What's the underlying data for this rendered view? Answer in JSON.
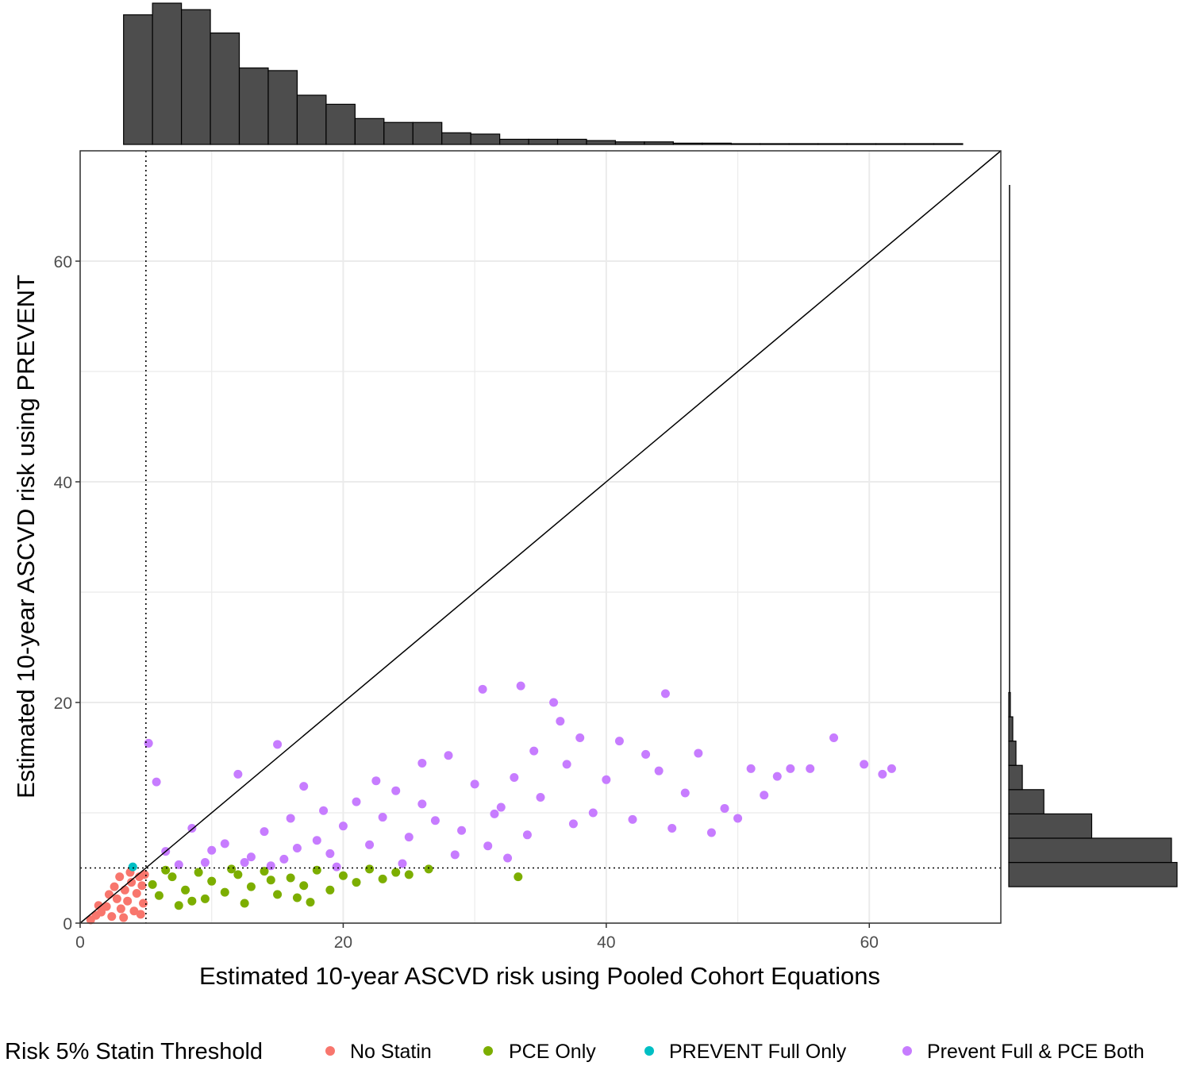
{
  "chart_data": {
    "type": "scatter",
    "title": "",
    "xlabel": "Estimated 10-year ASCVD risk using Pooled Cohort Equations",
    "ylabel": "Estimated 10-year ASCVD risk using PREVENT",
    "xlim": [
      0,
      70
    ],
    "ylim": [
      0,
      70
    ],
    "x_ticks": [
      0,
      20,
      40,
      60
    ],
    "y_ticks": [
      0,
      20,
      40,
      60
    ],
    "x_tick_labels": [
      "0",
      "20",
      "40",
      "60"
    ],
    "y_tick_labels": [
      "0",
      "20",
      "40",
      "60"
    ],
    "grid": true,
    "threshold": 5,
    "reference_line": "y = x",
    "legend": {
      "title": "Risk 5% Statin Threshold",
      "position": "bottom",
      "entries": [
        {
          "label": "No Statin",
          "color": "#F8766D"
        },
        {
          "label": "PCE Only",
          "color": "#7CAE00"
        },
        {
          "label": "PREVENT Full Only",
          "color": "#00BFC4"
        },
        {
          "label": "Prevent Full & PCE Both",
          "color": "#C77CFF"
        }
      ]
    },
    "series": [
      {
        "name": "No Statin",
        "color": "#F8766D",
        "points": [
          [
            0.8,
            0.3
          ],
          [
            1.2,
            0.7
          ],
          [
            1.6,
            1.0
          ],
          [
            2.0,
            1.5
          ],
          [
            2.4,
            0.6
          ],
          [
            2.8,
            2.2
          ],
          [
            3.1,
            1.3
          ],
          [
            3.4,
            3.0
          ],
          [
            3.6,
            2.0
          ],
          [
            3.9,
            3.7
          ],
          [
            4.1,
            1.1
          ],
          [
            4.3,
            2.7
          ],
          [
            4.5,
            4.2
          ],
          [
            4.7,
            3.4
          ],
          [
            4.8,
            1.8
          ],
          [
            2.6,
            3.3
          ],
          [
            3.0,
            4.2
          ],
          [
            3.8,
            4.6
          ],
          [
            1.4,
            1.6
          ],
          [
            2.2,
            2.6
          ],
          [
            4.9,
            4.4
          ],
          [
            4.6,
            0.8
          ],
          [
            3.3,
            0.5
          ]
        ]
      },
      {
        "name": "PCE Only",
        "color": "#7CAE00",
        "points": [
          [
            5.5,
            3.5
          ],
          [
            6.0,
            2.5
          ],
          [
            7.0,
            4.2
          ],
          [
            7.5,
            1.6
          ],
          [
            8.0,
            3.0
          ],
          [
            9.0,
            4.6
          ],
          [
            9.5,
            2.2
          ],
          [
            10.0,
            3.8
          ],
          [
            11.0,
            2.8
          ],
          [
            12.0,
            4.4
          ],
          [
            12.5,
            1.8
          ],
          [
            13.0,
            3.3
          ],
          [
            14.0,
            4.7
          ],
          [
            15.0,
            2.6
          ],
          [
            16.0,
            4.1
          ],
          [
            17.0,
            3.4
          ],
          [
            17.5,
            1.9
          ],
          [
            18.0,
            4.8
          ],
          [
            19.0,
            3.0
          ],
          [
            20.0,
            4.3
          ],
          [
            21.0,
            3.7
          ],
          [
            22.0,
            4.9
          ],
          [
            23.0,
            4.0
          ],
          [
            24.0,
            4.6
          ],
          [
            25.0,
            4.4
          ],
          [
            26.5,
            4.9
          ],
          [
            33.3,
            4.2
          ],
          [
            6.5,
            4.8
          ],
          [
            8.5,
            2.0
          ],
          [
            11.5,
            4.9
          ],
          [
            14.5,
            3.9
          ],
          [
            16.5,
            2.3
          ]
        ]
      },
      {
        "name": "PREVENT Full Only",
        "color": "#00BFC4",
        "points": [
          [
            4.0,
            5.1
          ]
        ]
      },
      {
        "name": "Prevent Full & PCE Both",
        "color": "#C77CFF",
        "points": [
          [
            5.2,
            16.3
          ],
          [
            5.8,
            12.8
          ],
          [
            8.5,
            8.6
          ],
          [
            9.5,
            5.5
          ],
          [
            11.0,
            7.2
          ],
          [
            12.0,
            13.5
          ],
          [
            13.0,
            6.0
          ],
          [
            14.0,
            8.3
          ],
          [
            15.0,
            16.2
          ],
          [
            15.5,
            5.8
          ],
          [
            16.0,
            9.5
          ],
          [
            16.5,
            6.8
          ],
          [
            17.0,
            12.4
          ],
          [
            18.0,
            7.5
          ],
          [
            18.5,
            10.2
          ],
          [
            19.0,
            6.3
          ],
          [
            20.0,
            8.8
          ],
          [
            21.0,
            11.0
          ],
          [
            22.0,
            7.1
          ],
          [
            23.0,
            9.6
          ],
          [
            24.0,
            12.0
          ],
          [
            25.0,
            7.8
          ],
          [
            26.0,
            14.5
          ],
          [
            27.0,
            9.3
          ],
          [
            28.0,
            15.2
          ],
          [
            29.0,
            8.4
          ],
          [
            30.0,
            12.6
          ],
          [
            30.6,
            21.2
          ],
          [
            31.0,
            7.0
          ],
          [
            32.0,
            10.5
          ],
          [
            33.0,
            13.2
          ],
          [
            33.5,
            21.5
          ],
          [
            34.0,
            8.0
          ],
          [
            35.0,
            11.4
          ],
          [
            36.0,
            20.0
          ],
          [
            36.5,
            18.3
          ],
          [
            37.0,
            14.4
          ],
          [
            37.5,
            9.0
          ],
          [
            38.0,
            16.8
          ],
          [
            39.0,
            10.0
          ],
          [
            40.0,
            13.0
          ],
          [
            41.0,
            16.5
          ],
          [
            42.0,
            9.4
          ],
          [
            43.0,
            15.3
          ],
          [
            44.0,
            13.8
          ],
          [
            44.5,
            20.8
          ],
          [
            45.0,
            8.6
          ],
          [
            46.0,
            11.8
          ],
          [
            47.0,
            15.4
          ],
          [
            48.0,
            8.2
          ],
          [
            49.0,
            10.4
          ],
          [
            50.0,
            9.5
          ],
          [
            51.0,
            14.0
          ],
          [
            52.0,
            11.6
          ],
          [
            53.0,
            13.3
          ],
          [
            54.0,
            14.0
          ],
          [
            55.5,
            14.0
          ],
          [
            57.3,
            16.8
          ],
          [
            59.6,
            14.4
          ],
          [
            61.0,
            13.5
          ],
          [
            61.7,
            14.0
          ],
          [
            6.5,
            6.5
          ],
          [
            7.5,
            5.3
          ],
          [
            10.0,
            6.6
          ],
          [
            12.5,
            5.5
          ],
          [
            14.5,
            5.2
          ],
          [
            19.5,
            5.1
          ],
          [
            24.5,
            5.4
          ],
          [
            28.5,
            6.2
          ],
          [
            32.5,
            5.9
          ],
          [
            26.0,
            10.8
          ],
          [
            22.5,
            12.9
          ],
          [
            31.5,
            9.9
          ],
          [
            34.5,
            15.6
          ]
        ]
      }
    ],
    "top_histogram": {
      "bin_edges": [
        3.3,
        5.5,
        7.7,
        9.9,
        12.1,
        14.3,
        16.5,
        18.7,
        20.9,
        23.1,
        25.3,
        27.5,
        29.7,
        31.9,
        34.1,
        36.3,
        38.5,
        40.7,
        42.9,
        45.1,
        47.3,
        49.5,
        51.7,
        53.9,
        56.1,
        58.3,
        60.5,
        62.7,
        64.9,
        67.1
      ],
      "heights": [
        100,
        109,
        104,
        86,
        59,
        57,
        38,
        31,
        20,
        17,
        17,
        9,
        8,
        4,
        4,
        4,
        3,
        2,
        2,
        1,
        1,
        0.5,
        0.5,
        0.5,
        0.5,
        0.5,
        0.5,
        0.5,
        0.5
      ]
    },
    "right_histogram": {
      "bin_edges": [
        3.3,
        5.5,
        7.7,
        9.9,
        12.1,
        14.3,
        16.5,
        18.7,
        20.9
      ],
      "lengths": [
        211,
        204,
        104,
        44,
        17,
        9,
        5,
        2
      ]
    }
  }
}
